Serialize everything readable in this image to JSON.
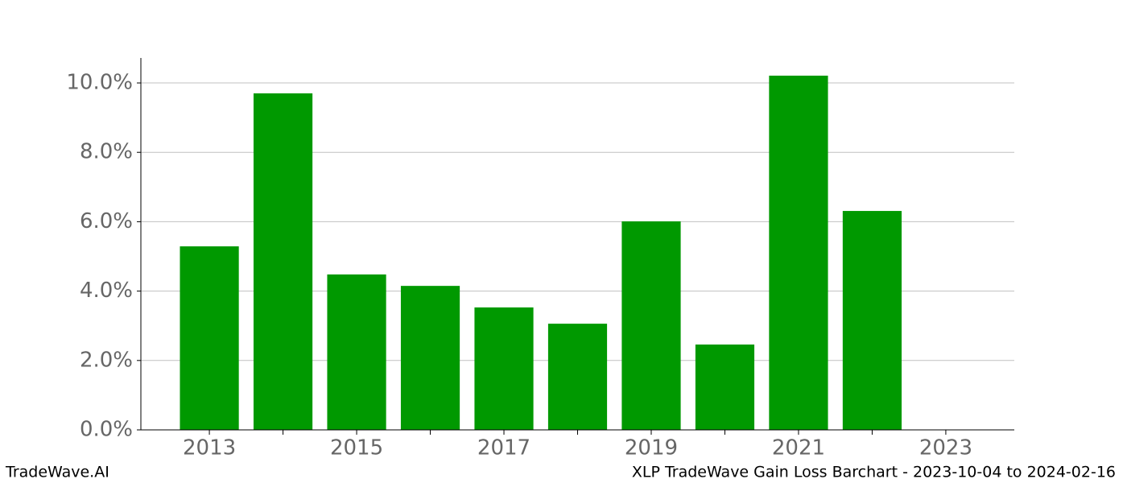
{
  "chart_data": {
    "type": "bar",
    "footer_left": "TradeWave.AI",
    "footer_right": "XLP TradeWave Gain Loss Barchart - 2023-10-04 to 2024-02-16",
    "x": [
      2013,
      2014,
      2015,
      2016,
      2017,
      2018,
      2019,
      2020,
      2021,
      2022
    ],
    "values": [
      5.29,
      9.7,
      4.48,
      4.15,
      3.53,
      3.06,
      6.01,
      2.46,
      10.21,
      6.31
    ],
    "color": "#009900",
    "xlim": [
      2012.07,
      2023.93
    ],
    "xticks": [
      2013,
      2015,
      2017,
      2019,
      2021,
      2023
    ],
    "xminorticks": [
      2014,
      2016,
      2018,
      2020,
      2022
    ],
    "ylim": [
      0,
      10.72
    ],
    "yticks": [
      {
        "value": 0,
        "label": "0.0%"
      },
      {
        "value": 2,
        "label": "2.0%"
      },
      {
        "value": 4,
        "label": "4.0%"
      },
      {
        "value": 6,
        "label": "6.0%"
      },
      {
        "value": 8,
        "label": "8.0%"
      },
      {
        "value": 10,
        "label": "10.0%"
      }
    ],
    "grid": true
  }
}
